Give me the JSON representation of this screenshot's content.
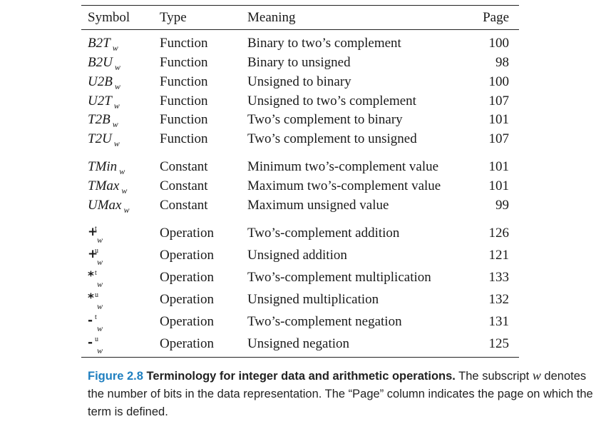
{
  "headers": {
    "symbol": "Symbol",
    "type": "Type",
    "meaning": "Meaning",
    "page": "Page"
  },
  "rows": [
    {
      "symbol": "B2T",
      "sub": "w",
      "type": "Function",
      "meaning": "Binary to two’s complement",
      "page": "100"
    },
    {
      "symbol": "B2U",
      "sub": "w",
      "type": "Function",
      "meaning": "Binary to unsigned",
      "page": "98"
    },
    {
      "symbol": "U2B",
      "sub": "w",
      "type": "Function",
      "meaning": "Unsigned to binary",
      "page": "100"
    },
    {
      "symbol": "U2T",
      "sub": "w",
      "type": "Function",
      "meaning": "Unsigned to two’s complement",
      "page": "107"
    },
    {
      "symbol": "T2B",
      "sub": "w",
      "type": "Function",
      "meaning": "Two’s complement to binary",
      "page": "101"
    },
    {
      "symbol": "T2U",
      "sub": "w",
      "type": "Function",
      "meaning": "Two’s complement to unsigned",
      "page": "107"
    },
    {
      "symbol": "TMin",
      "sub": "w",
      "type": "Constant",
      "meaning": "Minimum two’s-complement value",
      "page": "101"
    },
    {
      "symbol": "TMax",
      "sub": "w",
      "type": "Constant",
      "meaning": "Maximum two’s-complement value",
      "page": "101"
    },
    {
      "symbol": "UMax",
      "sub": "w",
      "type": "Constant",
      "meaning": "Maximum unsigned value",
      "page": "99"
    },
    {
      "symbol": "+",
      "sup": "t",
      "sub": "w",
      "type": "Operation",
      "meaning": "Two’s-complement addition",
      "page": "126"
    },
    {
      "symbol": "+",
      "sup": "u",
      "sub": "w",
      "type": "Operation",
      "meaning": "Unsigned addition",
      "page": "121"
    },
    {
      "symbol": "*",
      "sup": "t",
      "sub": "w",
      "type": "Operation",
      "meaning": "Two’s-complement multiplication",
      "page": "133"
    },
    {
      "symbol": "*",
      "sup": "u",
      "sub": "w",
      "type": "Operation",
      "meaning": "Unsigned multiplication",
      "page": "132"
    },
    {
      "symbol": "-",
      "sup": "t",
      "sub": "w",
      "type": "Operation",
      "meaning": "Two’s-complement negation",
      "page": "131"
    },
    {
      "symbol": "-",
      "sup": "u",
      "sub": "w",
      "type": "Operation",
      "meaning": "Unsigned negation",
      "page": "125"
    }
  ],
  "caption": {
    "label": "Figure 2.8",
    "title": "Terminology for integer data and arithmetic operations.",
    "text1": " The subscript ",
    "var": "w",
    "text2": " denotes the number of bits in the data representation. The “Page” column indicates the page on which the term is defined."
  }
}
